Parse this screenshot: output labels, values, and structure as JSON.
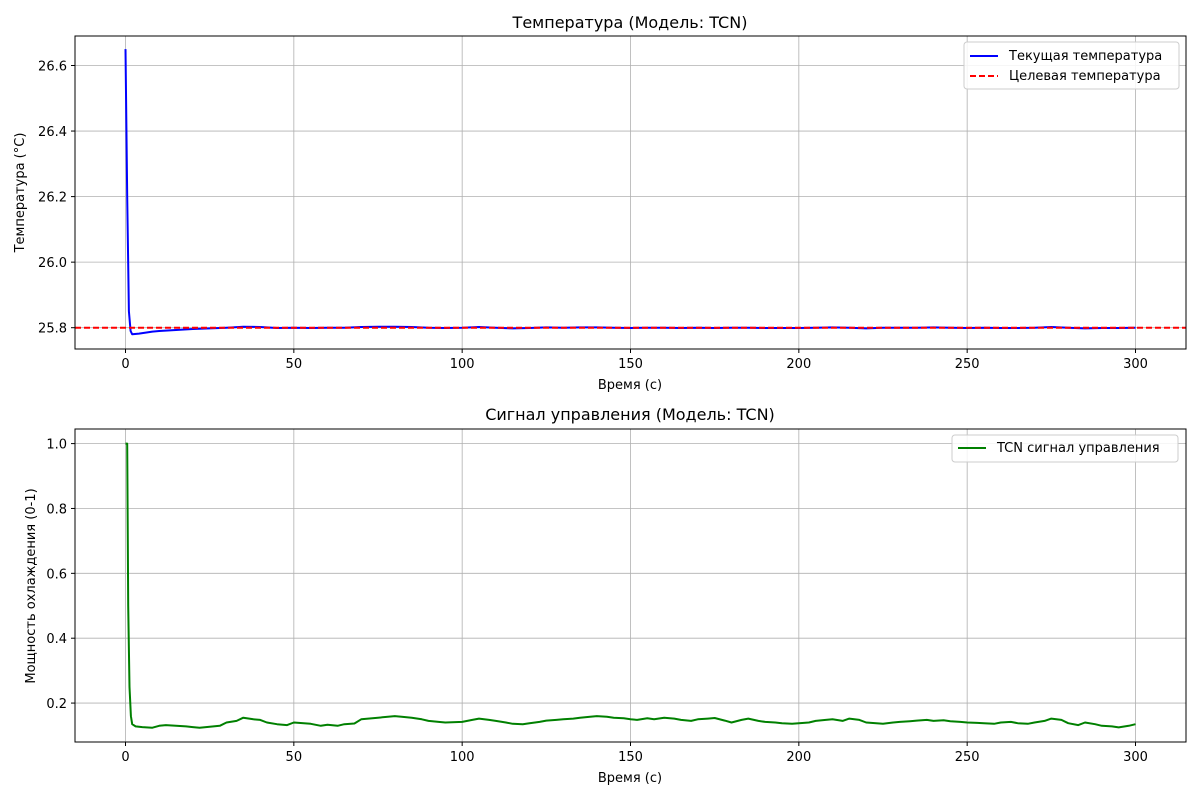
{
  "chart_data": [
    {
      "type": "line",
      "title": "Температура (Модель: TCN)",
      "xlabel": "Время (с)",
      "ylabel": "Температура (°C)",
      "xlim": [
        -15,
        315
      ],
      "ylim": [
        25.735,
        26.69
      ],
      "xticks": [
        0,
        50,
        100,
        150,
        200,
        250,
        300
      ],
      "yticks": [
        25.8,
        26.0,
        26.2,
        26.4,
        26.6
      ],
      "ytick_decimals": 1,
      "grid": true,
      "legend_position": "top-right",
      "series": [
        {
          "name": "Текущая температура",
          "color": "#0000ff",
          "style": "solid",
          "x": [
            0,
            0.5,
            1,
            1.5,
            2,
            4,
            6,
            8,
            10,
            15,
            20,
            25,
            30,
            35,
            40,
            45,
            50,
            55,
            60,
            65,
            70,
            75,
            80,
            85,
            90,
            95,
            100,
            105,
            110,
            115,
            120,
            125,
            130,
            135,
            140,
            145,
            150,
            155,
            160,
            165,
            170,
            175,
            180,
            185,
            190,
            195,
            200,
            205,
            210,
            215,
            220,
            225,
            230,
            235,
            240,
            245,
            250,
            255,
            260,
            265,
            270,
            275,
            280,
            285,
            290,
            295,
            300
          ],
          "y": [
            26.65,
            26.2,
            25.85,
            25.79,
            25.78,
            25.782,
            25.785,
            25.788,
            25.79,
            25.793,
            25.796,
            25.798,
            25.8,
            25.803,
            25.802,
            25.799,
            25.8,
            25.799,
            25.8,
            25.8,
            25.802,
            25.803,
            25.803,
            25.802,
            25.8,
            25.799,
            25.8,
            25.802,
            25.8,
            25.798,
            25.799,
            25.801,
            25.8,
            25.801,
            25.801,
            25.8,
            25.799,
            25.8,
            25.8,
            25.799,
            25.8,
            25.799,
            25.8,
            25.8,
            25.799,
            25.799,
            25.799,
            25.8,
            25.801,
            25.8,
            25.798,
            25.8,
            25.8,
            25.8,
            25.801,
            25.8,
            25.799,
            25.8,
            25.799,
            25.799,
            25.8,
            25.802,
            25.8,
            25.798,
            25.799,
            25.799,
            25.8
          ]
        },
        {
          "name": "Целевая температура",
          "color": "#ff0000",
          "style": "dashed",
          "x": [
            -15,
            315
          ],
          "y": [
            25.8,
            25.8
          ]
        }
      ]
    },
    {
      "type": "line",
      "title": "Сигнал управления (Модель: TCN)",
      "xlabel": "Время (с)",
      "ylabel": "Мощность охлаждения (0-1)",
      "xlim": [
        -15,
        315
      ],
      "ylim": [
        0.08,
        1.045
      ],
      "xticks": [
        0,
        50,
        100,
        150,
        200,
        250,
        300
      ],
      "yticks": [
        0.2,
        0.4,
        0.6,
        0.8,
        1.0
      ],
      "ytick_decimals": 1,
      "grid": true,
      "legend_position": "top-right",
      "series": [
        {
          "name": "TCN сигнал управления",
          "color": "#008000",
          "style": "solid",
          "x": [
            0,
            0.5,
            0.8,
            1.2,
            1.6,
            2,
            3,
            5,
            8,
            10,
            12,
            15,
            18,
            20,
            22,
            25,
            28,
            30,
            33,
            35,
            38,
            40,
            42,
            45,
            48,
            50,
            53,
            55,
            58,
            60,
            63,
            65,
            68,
            70,
            75,
            80,
            82,
            85,
            88,
            90,
            93,
            95,
            100,
            103,
            105,
            108,
            110,
            113,
            115,
            118,
            120,
            123,
            125,
            128,
            130,
            133,
            135,
            138,
            140,
            143,
            145,
            148,
            150,
            152,
            155,
            157,
            160,
            163,
            165,
            168,
            170,
            173,
            175,
            178,
            180,
            183,
            185,
            188,
            190,
            193,
            195,
            198,
            200,
            203,
            205,
            208,
            210,
            213,
            215,
            218,
            220,
            223,
            225,
            228,
            230,
            233,
            235,
            238,
            240,
            243,
            245,
            248,
            250,
            253,
            255,
            258,
            260,
            263,
            265,
            268,
            270,
            273,
            275,
            278,
            280,
            283,
            285,
            288,
            290,
            293,
            295,
            298,
            300
          ],
          "y": [
            1.0,
            1.0,
            0.5,
            0.25,
            0.16,
            0.135,
            0.128,
            0.126,
            0.124,
            0.13,
            0.132,
            0.13,
            0.128,
            0.126,
            0.124,
            0.127,
            0.13,
            0.14,
            0.145,
            0.155,
            0.15,
            0.148,
            0.14,
            0.135,
            0.132,
            0.14,
            0.138,
            0.136,
            0.13,
            0.133,
            0.13,
            0.135,
            0.137,
            0.15,
            0.155,
            0.16,
            0.158,
            0.155,
            0.15,
            0.145,
            0.142,
            0.14,
            0.142,
            0.148,
            0.152,
            0.148,
            0.145,
            0.14,
            0.136,
            0.135,
            0.138,
            0.142,
            0.146,
            0.148,
            0.15,
            0.152,
            0.155,
            0.158,
            0.16,
            0.158,
            0.155,
            0.153,
            0.15,
            0.148,
            0.153,
            0.15,
            0.155,
            0.152,
            0.148,
            0.145,
            0.15,
            0.152,
            0.154,
            0.146,
            0.14,
            0.148,
            0.152,
            0.145,
            0.142,
            0.14,
            0.138,
            0.136,
            0.138,
            0.14,
            0.145,
            0.148,
            0.15,
            0.145,
            0.152,
            0.148,
            0.14,
            0.138,
            0.136,
            0.14,
            0.142,
            0.144,
            0.146,
            0.148,
            0.145,
            0.147,
            0.144,
            0.142,
            0.14,
            0.139,
            0.138,
            0.136,
            0.14,
            0.142,
            0.138,
            0.136,
            0.14,
            0.145,
            0.152,
            0.148,
            0.138,
            0.132,
            0.14,
            0.135,
            0.13,
            0.128,
            0.125,
            0.13,
            0.135
          ]
        }
      ]
    }
  ]
}
